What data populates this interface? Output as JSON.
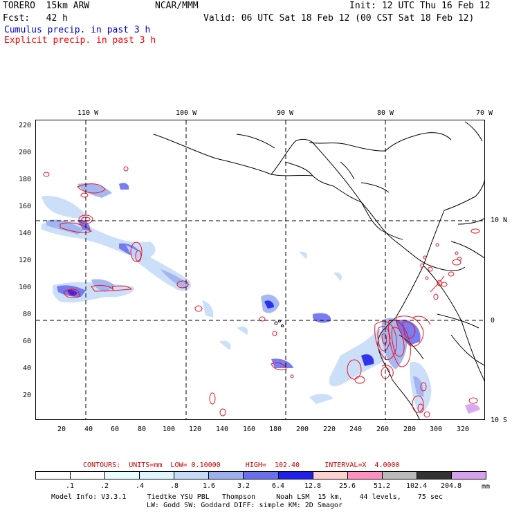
{
  "header": {
    "model": "TORERO  15km ARW",
    "center": "NCAR/MMM",
    "init": "Init: 12 UTC Thu 16 Feb 12",
    "fcst": "Fcst:   42 h",
    "valid": "Valid: 06 UTC Sat 18 Feb 12 (00 CST Sat 18 Feb 12)",
    "cumulus": "Cumulus precip. in past 3 h",
    "explicit": "Explicit precip. in past 3 h"
  },
  "colors": {
    "cumulus_label": "#0000cc",
    "explicit_label": "#ff0000",
    "contours_text": "#cc0000",
    "contour_line": "#ee1122",
    "coastline": "#000000"
  },
  "axes": {
    "longitudes_top": [
      "110 W",
      "100 W",
      "90 W",
      "80 W",
      "70 W"
    ],
    "latitudes_right": [
      "10 N",
      "0",
      "10 S"
    ],
    "y_ticks": [
      "220",
      "200",
      "180",
      "160",
      "140",
      "120",
      "100",
      "80",
      "60",
      "40",
      "20"
    ],
    "x_ticks": [
      "20",
      "40",
      "60",
      "80",
      "100",
      "120",
      "140",
      "160",
      "180",
      "200",
      "220",
      "240",
      "260",
      "280",
      "300",
      "320"
    ]
  },
  "contours": {
    "label": "CONTOURS:  UNITS=mm  LOW= 0.10000      HIGH=  102.40      INTERVAL=X  4.0000"
  },
  "colorbar": {
    "levels": [
      ".1",
      ".2",
      ".4",
      ".8",
      "1.6",
      "3.2",
      "6.4",
      "12.8",
      "25.6",
      "51.2",
      "102.4",
      "204.8"
    ],
    "unit": "mm",
    "colors": [
      "#ffffff",
      "#ffffff",
      "#e8ffff",
      "#dff5ff",
      "#c6dbf7",
      "#9cb0f0",
      "#6a6ff0",
      "#2020ee",
      "#ffd0d0",
      "#ff90c0",
      "#bbbbbb",
      "#333333",
      "#d7a0ef"
    ]
  },
  "footer": {
    "line1": "Model Info: V3.3.1     Tiedtke YSU PBL   Thompson     Noah LSM  15 km,    44 levels,    75 sec",
    "line2": "LW: Godd SW: Goddard DIFF: simple KM: 2D Smagor"
  }
}
